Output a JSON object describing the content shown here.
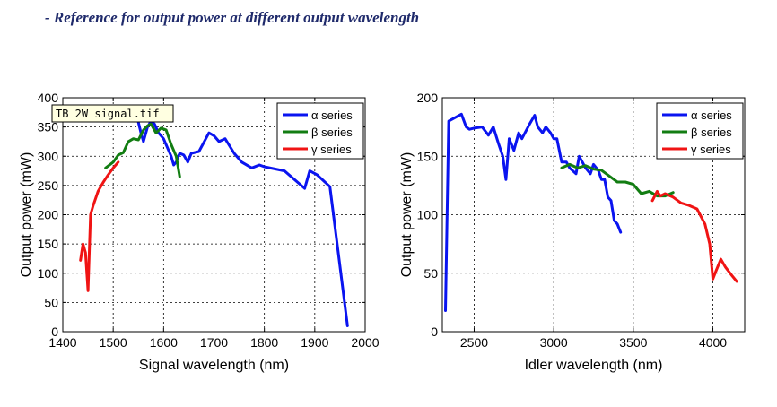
{
  "heading": "- Reference for output power at different output wavelength",
  "colors": {
    "alpha": "#0a14f0",
    "beta": "#127d12",
    "gamma": "#f01414",
    "heading": "#1f2a6b"
  },
  "chart_data": [
    {
      "type": "line",
      "xlabel": "Signal wavelength (nm)",
      "ylabel": "Output power (mW)",
      "xlim": [
        1400,
        2000
      ],
      "ylim": [
        0,
        400
      ],
      "xticks": [
        1400,
        1500,
        1600,
        1700,
        1800,
        1900,
        2000
      ],
      "yticks": [
        0,
        50,
        100,
        150,
        200,
        250,
        300,
        350,
        400
      ],
      "grid": true,
      "legend": "top-right",
      "tooltip": "TB 2W signal.tif",
      "series": [
        {
          "name": "α series",
          "color_key": "alpha",
          "x": [
            1540,
            1548,
            1555,
            1560,
            1568,
            1575,
            1582,
            1590,
            1600,
            1610,
            1615,
            1620,
            1625,
            1628,
            1632,
            1640,
            1648,
            1655,
            1670,
            1690,
            1700,
            1710,
            1722,
            1740,
            1755,
            1775,
            1790,
            1800,
            1840,
            1880,
            1890,
            1905,
            1930,
            1965
          ],
          "y": [
            380,
            365,
            340,
            325,
            350,
            360,
            355,
            340,
            330,
            310,
            300,
            285,
            290,
            298,
            305,
            302,
            290,
            305,
            308,
            340,
            335,
            325,
            330,
            305,
            290,
            280,
            285,
            282,
            275,
            245,
            275,
            268,
            248,
            10
          ]
        },
        {
          "name": "β series",
          "color_key": "beta",
          "x": [
            1485,
            1500,
            1510,
            1520,
            1530,
            1540,
            1550,
            1560,
            1568,
            1575,
            1585,
            1595,
            1605,
            1615,
            1625,
            1632
          ],
          "y": [
            280,
            290,
            302,
            306,
            325,
            330,
            328,
            345,
            352,
            355,
            340,
            348,
            345,
            320,
            300,
            265
          ]
        },
        {
          "name": "γ series",
          "color_key": "gamma",
          "x": [
            1435,
            1440,
            1445,
            1450,
            1455,
            1460,
            1470,
            1480,
            1490,
            1500,
            1510
          ],
          "y": [
            122,
            150,
            135,
            70,
            200,
            215,
            240,
            255,
            268,
            280,
            290
          ]
        }
      ]
    },
    {
      "type": "line",
      "xlabel": "Idler wavelength (nm)",
      "ylabel": "Output power (mW)",
      "xlim": [
        2300,
        4200
      ],
      "ylim": [
        0,
        200
      ],
      "xticks": [
        2500,
        3000,
        3500,
        4000
      ],
      "yticks": [
        0,
        50,
        100,
        150,
        200
      ],
      "grid": true,
      "legend": "top-right",
      "series": [
        {
          "name": "α series",
          "color_key": "alpha",
          "x": [
            2320,
            2340,
            2380,
            2420,
            2450,
            2470,
            2500,
            2550,
            2590,
            2620,
            2650,
            2680,
            2700,
            2720,
            2750,
            2780,
            2800,
            2850,
            2880,
            2900,
            2930,
            2950,
            2980,
            3000,
            3020,
            3050,
            3080,
            3100,
            3140,
            3160,
            3180,
            3200,
            3230,
            3250,
            3280,
            3300,
            3320,
            3340,
            3360,
            3380,
            3400,
            3420
          ],
          "y": [
            18,
            180,
            183,
            186,
            175,
            173,
            174,
            175,
            168,
            175,
            162,
            150,
            130,
            165,
            155,
            170,
            165,
            178,
            185,
            175,
            170,
            175,
            170,
            165,
            165,
            145,
            145,
            140,
            135,
            150,
            145,
            140,
            135,
            143,
            138,
            130,
            130,
            115,
            112,
            95,
            92,
            85
          ]
        },
        {
          "name": "β series",
          "color_key": "beta",
          "x": [
            3050,
            3100,
            3150,
            3200,
            3250,
            3300,
            3350,
            3400,
            3450,
            3500,
            3550,
            3600,
            3650,
            3700,
            3750
          ],
          "y": [
            140,
            143,
            140,
            142,
            139,
            138,
            133,
            128,
            128,
            126,
            118,
            120,
            116,
            116,
            119
          ]
        },
        {
          "name": "γ series",
          "color_key": "gamma",
          "x": [
            3620,
            3650,
            3670,
            3700,
            3750,
            3800,
            3850,
            3900,
            3950,
            3980,
            4000,
            4020,
            4050,
            4080,
            4120,
            4150
          ],
          "y": [
            112,
            120,
            116,
            118,
            115,
            110,
            108,
            105,
            92,
            75,
            45,
            52,
            62,
            55,
            48,
            43
          ]
        }
      ]
    }
  ]
}
